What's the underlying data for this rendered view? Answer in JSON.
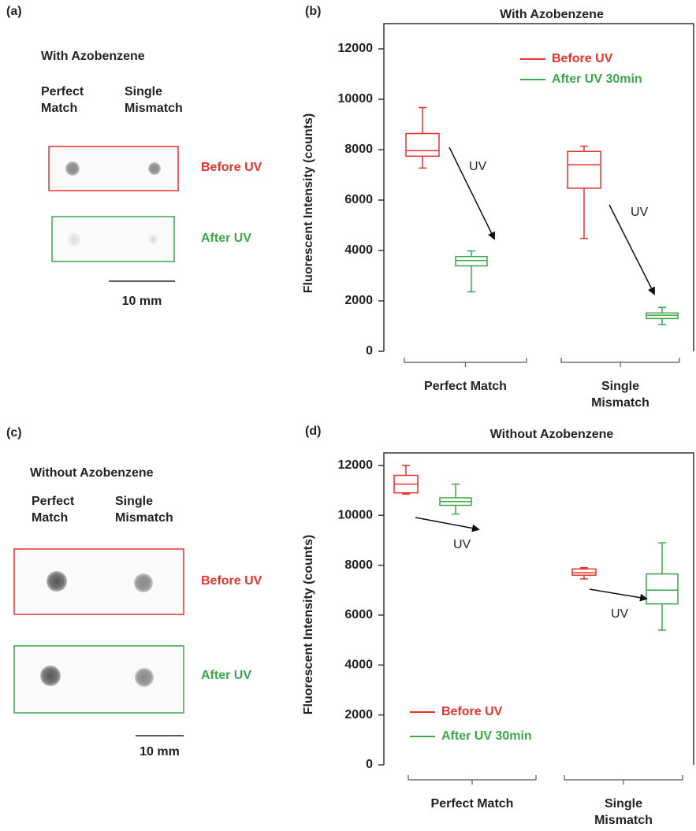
{
  "photos": [
    {
      "label": "(a)",
      "title": "With Azobenzene",
      "columns": [
        "Perfect Match",
        "Single Mismatch"
      ],
      "rows": [
        "Before UV",
        "After UV"
      ],
      "scale": "10 mm"
    },
    {
      "label": "(c)",
      "title": "Without Azobenzene",
      "columns": [
        "Perfect Match",
        "Single Mismatch"
      ],
      "rows": [
        "Before UV",
        "After UV"
      ],
      "scale": "10 mm"
    }
  ],
  "chart_data": [
    {
      "type": "box",
      "label": "(b)",
      "title": "With Azobenzene",
      "y_label": "Fluorescent Intensity (counts)",
      "categories": [
        "Perfect Match",
        "Single Mismatch"
      ],
      "series": [
        {
          "name": "Before UV",
          "color": "#e8322b",
          "values": [
            {
              "min": 7270,
              "q1": 7740,
              "median": 7960,
              "q3": 8640,
              "max": 9670
            },
            {
              "min": 4480,
              "q1": 6470,
              "median": 7400,
              "q3": 7930,
              "max": 8140
            }
          ]
        },
        {
          "name": "After UV 30min",
          "color": "#3aa84a",
          "values": [
            {
              "min": 2360,
              "q1": 3390,
              "median": 3600,
              "q3": 3760,
              "max": 3980
            },
            {
              "min": 1060,
              "q1": 1300,
              "median": 1430,
              "q3": 1520,
              "max": 1740
            }
          ]
        }
      ],
      "annotations": [
        "UV",
        "UV"
      ],
      "ylim": [
        0,
        13000
      ],
      "yticks": [
        0,
        2000,
        4000,
        6000,
        8000,
        10000,
        12000
      ],
      "legend": "upper right"
    },
    {
      "type": "box",
      "label": "(d)",
      "title": "Without Azobenzene",
      "y_label": "Fluorescent Intensity (counts)",
      "categories": [
        "Perfect Match",
        "Single Mismatch"
      ],
      "series": [
        {
          "name": "Before UV",
          "color": "#e8322b",
          "values": [
            {
              "min": 10850,
              "q1": 10900,
              "median": 11250,
              "q3": 11600,
              "max": 12000
            },
            {
              "min": 7450,
              "q1": 7600,
              "median": 7700,
              "q3": 7850,
              "max": 7900
            }
          ]
        },
        {
          "name": "After UV 30min",
          "color": "#3aa84a",
          "values": [
            {
              "min": 10050,
              "q1": 10400,
              "median": 10550,
              "q3": 10700,
              "max": 11250
            },
            {
              "min": 5400,
              "q1": 6450,
              "median": 7000,
              "q3": 7650,
              "max": 8900
            }
          ]
        }
      ],
      "annotations": [
        "UV",
        "UV"
      ],
      "ylim": [
        0,
        12500
      ],
      "yticks": [
        0,
        2000,
        4000,
        6000,
        8000,
        10000,
        12000
      ],
      "legend": "lower left"
    }
  ]
}
